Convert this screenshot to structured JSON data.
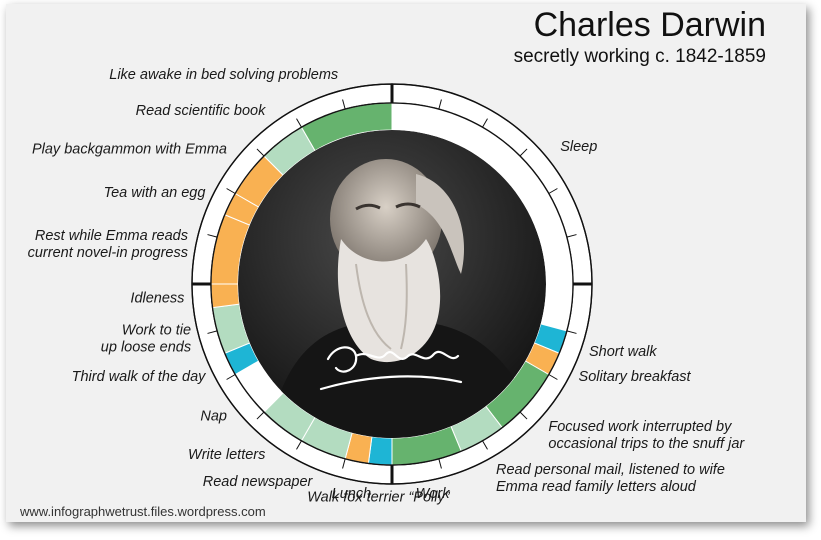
{
  "header": {
    "title": "Charles Darwin",
    "subtitle": "secretly working c. 1842-1859"
  },
  "footer": {
    "source": "www.infographwetrust.files.wordpress.com"
  },
  "colors": {
    "sleep": "#ffffff",
    "work": "#66b36e",
    "light_work": "#b3dcc0",
    "leisure": "#f9b152",
    "walk": "#1eb5d5"
  },
  "chart_data": {
    "type": "radial",
    "unit": "hours",
    "total_hours": 24,
    "start_hour": 0,
    "direction": "clockwise",
    "segments": [
      {
        "label": "Sleep",
        "start": 0.0,
        "end": 7.0,
        "category": "sleep"
      },
      {
        "label": "Short walk",
        "start": 7.0,
        "end": 7.5,
        "category": "walk"
      },
      {
        "label": "Solitary breakfast",
        "start": 7.5,
        "end": 8.0,
        "category": "leisure"
      },
      {
        "label": "Focused work interrupted by\noccasional trips to the snuff jar",
        "start": 8.0,
        "end": 9.5,
        "category": "work"
      },
      {
        "label": "Read personal mail, listened to wife\nEmma read family letters aloud",
        "start": 9.5,
        "end": 10.5,
        "category": "light_work"
      },
      {
        "label": "Work",
        "start": 10.5,
        "end": 12.0,
        "category": "work"
      },
      {
        "label": "Walk fox terrier “Polly”",
        "start": 12.0,
        "end": 12.5,
        "category": "walk"
      },
      {
        "label": "Lunch",
        "start": 12.5,
        "end": 13.0,
        "category": "leisure"
      },
      {
        "label": "Read newspaper",
        "start": 13.0,
        "end": 14.0,
        "category": "light_work"
      },
      {
        "label": "Write letters",
        "start": 14.0,
        "end": 15.0,
        "category": "light_work"
      },
      {
        "label": "Nap",
        "start": 15.0,
        "end": 16.0,
        "category": "sleep"
      },
      {
        "label": "Third walk of the day",
        "start": 16.0,
        "end": 16.5,
        "category": "walk"
      },
      {
        "label": "Work to tie\nup loose ends",
        "start": 16.5,
        "end": 17.5,
        "category": "light_work"
      },
      {
        "label": "Idleness",
        "start": 17.5,
        "end": 18.0,
        "category": "leisure"
      },
      {
        "label": "Rest while Emma reads\ncurrent novel-in progress",
        "start": 18.0,
        "end": 19.5,
        "category": "leisure"
      },
      {
        "label": "Tea with an egg",
        "start": 19.5,
        "end": 20.0,
        "category": "leisure"
      },
      {
        "label": "Play backgammon with Emma",
        "start": 20.0,
        "end": 21.0,
        "category": "leisure"
      },
      {
        "label": "Read scientific book",
        "start": 21.0,
        "end": 22.0,
        "category": "light_work"
      },
      {
        "label": "Like awake in bed solving problems",
        "start": 22.0,
        "end": 24.0,
        "category": "work"
      }
    ]
  },
  "photo": {
    "signature": "Darwin"
  }
}
